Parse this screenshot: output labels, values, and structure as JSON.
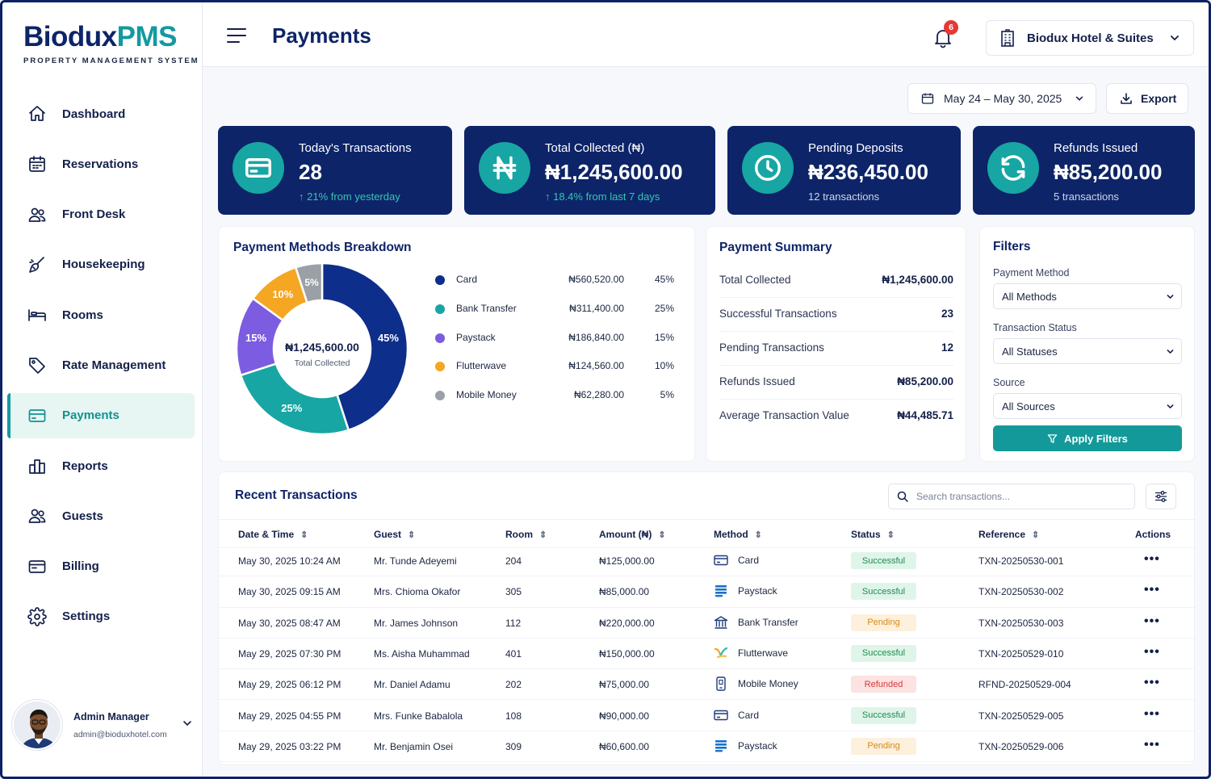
{
  "brand": {
    "name_a": "Biodux",
    "name_b": "PMS",
    "tagline": "PROPERTY MANAGEMENT SYSTEM"
  },
  "colors": {
    "navy": "#0d2468",
    "teal": "#1499a0",
    "purple": "#7c5ce0",
    "orange": "#f5a623",
    "gray": "#9aa0a6"
  },
  "sidebar": {
    "items": [
      {
        "label": "Dashboard",
        "icon": "home-icon"
      },
      {
        "label": "Reservations",
        "icon": "calendar-icon"
      },
      {
        "label": "Front Desk",
        "icon": "users-icon"
      },
      {
        "label": "Housekeeping",
        "icon": "broom-icon"
      },
      {
        "label": "Rooms",
        "icon": "bed-icon"
      },
      {
        "label": "Rate Management",
        "icon": "tag-icon"
      },
      {
        "label": "Payments",
        "icon": "wallet-icon"
      },
      {
        "label": "Reports",
        "icon": "reports-icon"
      },
      {
        "label": "Guests",
        "icon": "guests-icon"
      },
      {
        "label": "Billing",
        "icon": "billing-icon"
      },
      {
        "label": "Settings",
        "icon": "gear-icon"
      }
    ],
    "active": "Payments"
  },
  "user": {
    "name": "Admin Manager",
    "email": "admin@bioduxhotel.com"
  },
  "header": {
    "title": "Payments",
    "notifications": "6",
    "hotel": "Biodux Hotel & Suites"
  },
  "toolbar": {
    "date_range": "May 24 – May 30, 2025",
    "export_label": "Export"
  },
  "stats": [
    {
      "title": "Today's Transactions",
      "value": "28",
      "sub": "↑ 21% from yesterday",
      "icon": "card-icon"
    },
    {
      "title": "Total Collected (₦)",
      "value": "₦1,245,600.00",
      "sub": "↑ 18.4% from last 7 days",
      "icon": "naira-icon"
    },
    {
      "title": "Pending Deposits",
      "value": "₦236,450.00",
      "sub": "12 transactions",
      "icon": "clock-icon"
    },
    {
      "title": "Refunds Issued",
      "value": "₦85,200.00",
      "sub": "5 transactions",
      "icon": "refresh-icon"
    }
  ],
  "breakdown": {
    "title": "Payment Methods Breakdown",
    "center_value": "₦1,245,600.00",
    "center_label": "Total Collected",
    "items": [
      {
        "name": "Card",
        "amount": "₦560,520.00",
        "pct": "45%",
        "value": 45,
        "color": "#0d2e8a"
      },
      {
        "name": "Bank Transfer",
        "amount": "₦311,400.00",
        "pct": "25%",
        "value": 25,
        "color": "#17a6a3"
      },
      {
        "name": "Paystack",
        "amount": "₦186,840.00",
        "pct": "15%",
        "value": 15,
        "color": "#7c5ce0"
      },
      {
        "name": "Flutterwave",
        "amount": "₦124,560.00",
        "pct": "10%",
        "value": 10,
        "color": "#f5a623"
      },
      {
        "name": "Mobile Money",
        "amount": "₦62,280.00",
        "pct": "5%",
        "value": 5,
        "color": "#9aa0a6"
      }
    ]
  },
  "summary": {
    "title": "Payment Summary",
    "rows": [
      {
        "label": "Total Collected",
        "value": "₦1,245,600.00"
      },
      {
        "label": "Successful Transactions",
        "value": "23"
      },
      {
        "label": "Pending Transactions",
        "value": "12"
      },
      {
        "label": "Refunds Issued",
        "value": "₦85,200.00"
      },
      {
        "label": "Average Transaction Value",
        "value": "₦44,485.71"
      }
    ]
  },
  "filters": {
    "title": "Filters",
    "payment_method_label": "Payment Method",
    "payment_method_value": "All Methods",
    "status_label": "Transaction Status",
    "status_value": "All Statuses",
    "source_label": "Source",
    "source_value": "All Sources",
    "apply_label": "Apply Filters"
  },
  "transactions": {
    "title": "Recent Transactions",
    "search_placeholder": "Search transactions...",
    "columns": [
      "Date & Time",
      "Guest",
      "Room",
      "Amount (₦)",
      "Method",
      "Status",
      "Reference",
      "Actions"
    ],
    "rows": [
      {
        "date": "May 30, 2025 10:24 AM",
        "guest": "Mr. Tunde Adeyemi",
        "room": "204",
        "amount": "₦125,000.00",
        "method": "Card",
        "method_icon": "card-icon",
        "status": "Successful",
        "status_kind": "successful",
        "ref": "TXN-20250530-001"
      },
      {
        "date": "May 30, 2025 09:15 AM",
        "guest": "Mrs. Chioma Okafor",
        "room": "305",
        "amount": "₦85,000.00",
        "method": "Paystack",
        "method_icon": "paystack-icon",
        "status": "Successful",
        "status_kind": "successful",
        "ref": "TXN-20250530-002"
      },
      {
        "date": "May 30, 2025 08:47 AM",
        "guest": "Mr. James Johnson",
        "room": "112",
        "amount": "₦220,000.00",
        "method": "Bank Transfer",
        "method_icon": "bank-icon",
        "status": "Pending",
        "status_kind": "pending",
        "ref": "TXN-20250530-003"
      },
      {
        "date": "May 29, 2025 07:30 PM",
        "guest": "Ms. Aisha Muhammad",
        "room": "401",
        "amount": "₦150,000.00",
        "method": "Flutterwave",
        "method_icon": "flutterwave-icon",
        "status": "Successful",
        "status_kind": "successful",
        "ref": "TXN-20250529-010"
      },
      {
        "date": "May 29, 2025 06:12 PM",
        "guest": "Mr. Daniel Adamu",
        "room": "202",
        "amount": "₦75,000.00",
        "method": "Mobile Money",
        "method_icon": "phone-icon",
        "status": "Refunded",
        "status_kind": "refunded",
        "ref": "RFND-20250529-004"
      },
      {
        "date": "May 29, 2025 04:55 PM",
        "guest": "Mrs. Funke Babalola",
        "room": "108",
        "amount": "₦90,000.00",
        "method": "Card",
        "method_icon": "card-icon",
        "status": "Successful",
        "status_kind": "successful",
        "ref": "TXN-20250529-005"
      },
      {
        "date": "May 29, 2025 03:22 PM",
        "guest": "Mr. Benjamin Osei",
        "room": "309",
        "amount": "₦60,600.00",
        "method": "Paystack",
        "method_icon": "paystack-icon",
        "status": "Pending",
        "status_kind": "pending",
        "ref": "TXN-20250529-006"
      }
    ]
  }
}
